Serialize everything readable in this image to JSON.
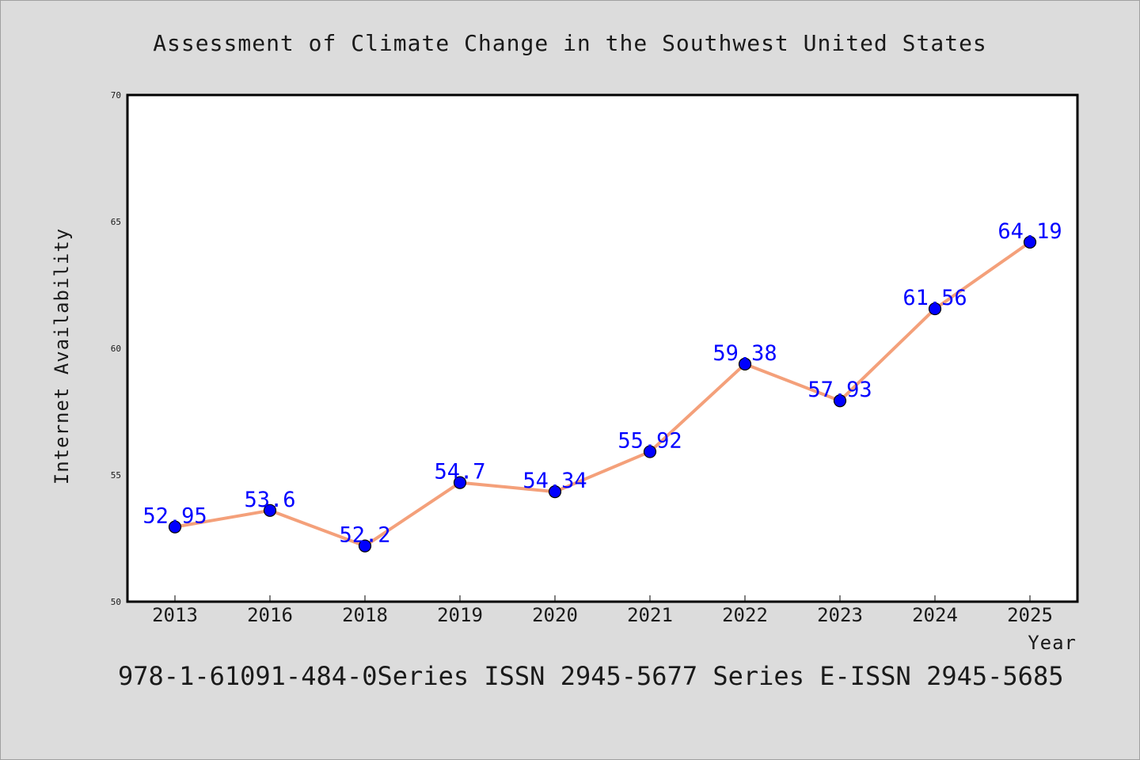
{
  "chart_data": {
    "type": "line",
    "title": "Assessment of Climate Change in the Southwest United States",
    "xlabel": "Year",
    "ylabel": "Internet Availability",
    "categories": [
      "2013",
      "2016",
      "2018",
      "2019",
      "2020",
      "2021",
      "2022",
      "2023",
      "2024",
      "2025"
    ],
    "series": [
      {
        "values": [
          52.95,
          53.6,
          52.2,
          54.7,
          54.34,
          55.92,
          59.38,
          57.93,
          61.56,
          64.19
        ],
        "data_labels": [
          "52.95",
          "53.6",
          "52.2",
          "54.7",
          "54.34",
          "55.92",
          "59.38",
          "57.93",
          "61.56",
          "64.19"
        ],
        "line_color": "#f4a07a",
        "marker_color": "#0000ff"
      }
    ],
    "ylim": [
      50,
      70
    ],
    "yticks": [
      "50",
      "55",
      "60",
      "65",
      "70"
    ],
    "grid": false,
    "legend": false
  },
  "footer": "978-1-61091-484-0Series ISSN 2945-5677 Series E-ISSN 2945-5685"
}
